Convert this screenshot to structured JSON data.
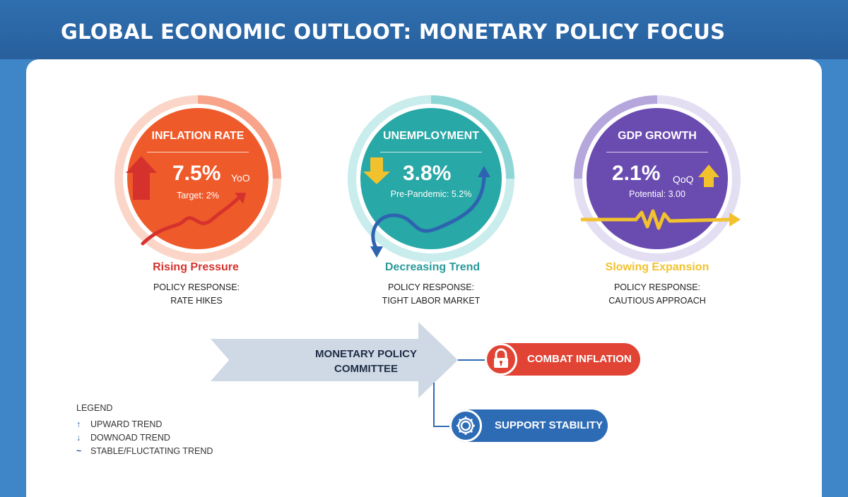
{
  "header": {
    "title": "GLOBAL ECONOMIC OUTLOOT: MONETARY POLICY FOCUS"
  },
  "metrics": [
    {
      "title": "INFLATION RATE",
      "value": "7.5%",
      "unit": "YoO",
      "sub": "Target: 2%",
      "trend_label": "Rising Pressure",
      "policy_line1": "POLICY RESPONSE:",
      "policy_line2": "RATE HIKES",
      "color": "#ef5a2a",
      "trend_color": "#d6322d"
    },
    {
      "title": "UNEMPLOYMENT",
      "value": "3.8%",
      "unit": "",
      "sub": "Pre-Pandemic: 5.2%",
      "trend_label": "Decreasing Trend",
      "policy_line1": "POLICY RESPONSE:",
      "policy_line2": "TIGHT LABOR MARKET",
      "color": "#28a8a6",
      "trend_color": "#2a9a9a"
    },
    {
      "title": "GDP GROWTH",
      "value": "2.1%",
      "unit": "QoQ",
      "sub": "Potential: 3.00",
      "trend_label": "Slowing Expansion",
      "policy_line1": "POLICY RESPONSE:",
      "policy_line2": "CAUTIOUS APPROACH",
      "color": "#6a4bb0",
      "trend_color": "#f2c22e"
    }
  ],
  "committee": {
    "line1": "MONETARY POLICY",
    "line2": "COMMITTEE"
  },
  "actions": [
    {
      "label": "COMBAT INFLATION",
      "icon": "lock-icon",
      "color": "#e14434"
    },
    {
      "label": "SUPPORT STABILITY",
      "icon": "gear-icon",
      "color": "#2d6cb5"
    }
  ],
  "legend": {
    "title": "LEGEND",
    "items": [
      {
        "symbol": "↑",
        "label": "UPWARD TREND"
      },
      {
        "symbol": "↓",
        "label": "DOWNOAD TREND"
      },
      {
        "symbol": "~",
        "label": "STABLE/FLUCTATING TREND"
      }
    ]
  }
}
